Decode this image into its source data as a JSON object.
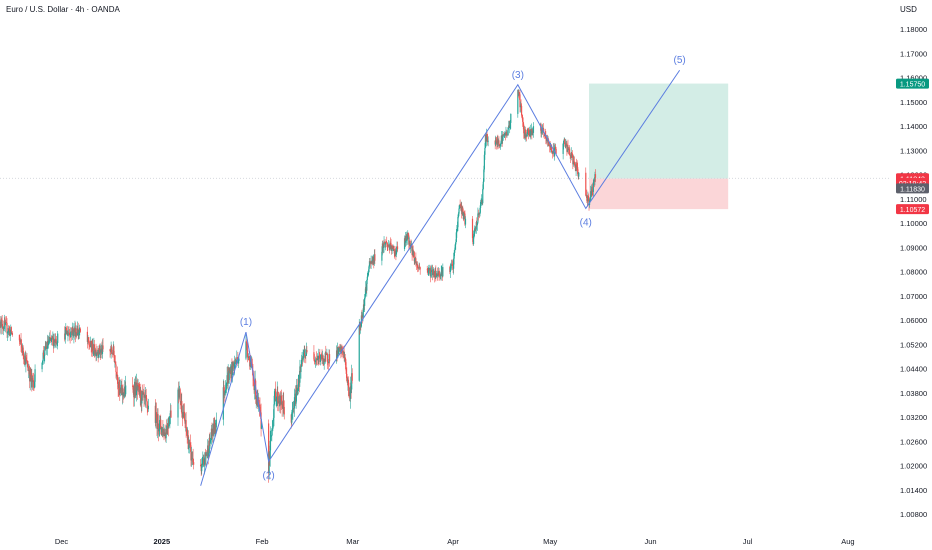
{
  "header": {
    "title": "Euro / U.S. Dollar · 4h · OANDA",
    "currency": "USD"
  },
  "chart_data": {
    "type": "candlestick",
    "title": "Euro / U.S. Dollar · 4h · OANDA",
    "y_axis": {
      "unit": "USD",
      "tick_labels": [
        "1.18000",
        "1.17000",
        "1.16000",
        "1.15000",
        "1.14000",
        "1.13000",
        "1.12000",
        "1.11000",
        "1.10000",
        "1.09000",
        "1.08000",
        "1.07000",
        "1.06000",
        "1.05200",
        "1.04400",
        "1.03800",
        "1.03200",
        "1.02600",
        "1.02000",
        "1.01400",
        "1.00800"
      ],
      "range": [
        1.006,
        1.182
      ]
    },
    "x_axis": {
      "tick_labels": [
        "Dec",
        "2025",
        "Feb",
        "Mar",
        "Apr",
        "May",
        "Jun",
        "Jul",
        "Aug"
      ],
      "range": [
        "2024-11-12",
        "2025-08-14"
      ]
    },
    "price_path": [
      [
        "2024-11-12",
        1.0595
      ],
      [
        "2024-11-18",
        1.053
      ],
      [
        "2024-11-22",
        1.04
      ],
      [
        "2024-11-27",
        1.0525
      ],
      [
        "2024-12-03",
        1.056
      ],
      [
        "2024-12-06",
        1.0565
      ],
      [
        "2024-12-11",
        1.05
      ],
      [
        "2024-12-17",
        1.0495
      ],
      [
        "2024-12-19",
        1.038
      ],
      [
        "2024-12-24",
        1.039
      ],
      [
        "2025-01-02",
        1.028
      ],
      [
        "2025-01-06",
        1.0395
      ],
      [
        "2025-01-10",
        1.0225
      ],
      [
        "2025-01-13",
        1.018
      ],
      [
        "2025-01-17",
        1.029
      ],
      [
        "2025-01-21",
        1.041
      ],
      [
        "2025-01-27",
        1.052
      ],
      [
        "2025-02-03",
        1.02
      ],
      [
        "2025-02-05",
        1.038
      ],
      [
        "2025-02-10",
        1.031
      ],
      [
        "2025-02-14",
        1.049
      ],
      [
        "2025-02-20",
        1.047
      ],
      [
        "2025-02-26",
        1.05
      ],
      [
        "2025-02-28",
        1.037
      ],
      [
        "2025-03-04",
        1.063
      ],
      [
        "2025-03-06",
        1.082
      ],
      [
        "2025-03-11",
        1.092
      ],
      [
        "2025-03-14",
        1.088
      ],
      [
        "2025-03-18",
        1.094
      ],
      [
        "2025-03-21",
        1.082
      ],
      [
        "2025-03-27",
        1.079
      ],
      [
        "2025-04-01",
        1.082
      ],
      [
        "2025-04-03",
        1.108
      ],
      [
        "2025-04-07",
        1.092
      ],
      [
        "2025-04-10",
        1.11
      ],
      [
        "2025-04-11",
        1.135
      ],
      [
        "2025-04-15",
        1.133
      ],
      [
        "2025-04-18",
        1.138
      ],
      [
        "2025-04-21",
        1.156
      ],
      [
        "2025-04-23",
        1.137
      ],
      [
        "2025-04-28",
        1.139
      ],
      [
        "2025-05-02",
        1.129
      ],
      [
        "2025-05-05",
        1.134
      ],
      [
        "2025-05-08",
        1.126
      ],
      [
        "2025-05-12",
        1.112
      ],
      [
        "2025-05-13",
        1.109
      ],
      [
        "2025-05-15",
        1.119
      ]
    ],
    "elliott_wave": {
      "points": [
        {
          "label": "",
          "date": "2025-01-13",
          "price": 1.015
        },
        {
          "label": "(1)",
          "date": "2025-01-27",
          "price": 1.056
        },
        {
          "label": "(2)",
          "date": "2025-02-03",
          "price": 1.021
        },
        {
          "label": "(3)",
          "date": "2025-04-21",
          "price": 1.157
        },
        {
          "label": "(4)",
          "date": "2025-05-12",
          "price": 1.106
        },
        {
          "label": "(5)",
          "date": "2025-06-10",
          "price": 1.163
        }
      ],
      "color": "#5b7de0"
    },
    "position_tool": {
      "start": "2025-05-13",
      "end": "2025-06-25",
      "entry": 1.1183,
      "target": 1.1575,
      "stop": 1.10572,
      "profit_color": "#d3ede6",
      "loss_color": "#fbd6d8"
    },
    "price_badges": [
      {
        "text": "1.15750",
        "price": 1.1575,
        "color": "#089981"
      },
      {
        "text": "1.11843",
        "price": 1.11843,
        "color": "#f23645"
      },
      {
        "text": "02:19:42",
        "price": 1.1165,
        "color": "#f23645"
      },
      {
        "text": "1.11830",
        "price": 1.1143,
        "color": "#5d606b"
      },
      {
        "text": "1.10572",
        "price": 1.10572,
        "color": "#f23645"
      }
    ],
    "current_price": 1.11843,
    "colors": {
      "up": "#26a69a",
      "down": "#ef5350",
      "axis_text": "#131722"
    }
  }
}
